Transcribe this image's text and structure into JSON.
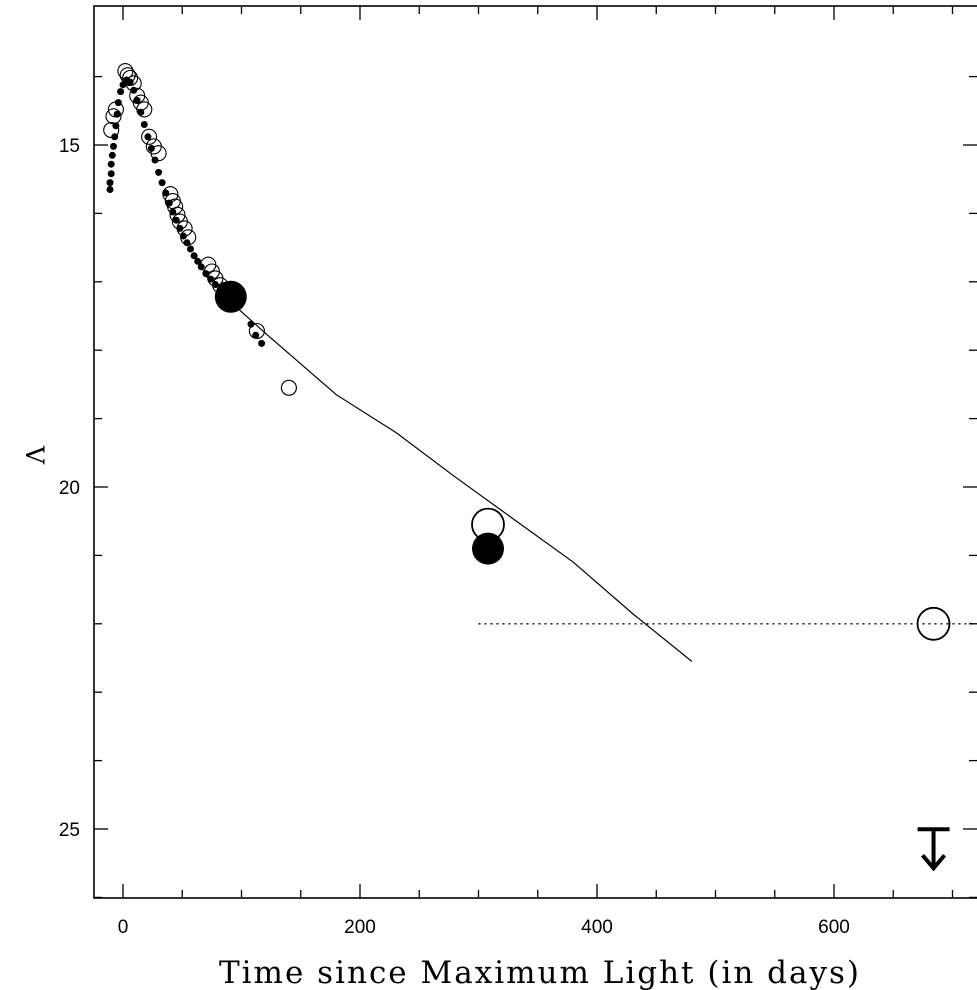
{
  "chart_data": {
    "type": "scatter",
    "title": "",
    "xlabel": "Time since Maximum Light (in days)",
    "ylabel": "V",
    "xlim": [
      -25,
      720
    ],
    "ylim": [
      15.0,
      26.0
    ],
    "y_inverted": true,
    "grid": false,
    "x_ticks": [
      0,
      200,
      400,
      600
    ],
    "y_ticks": [
      15,
      20,
      25
    ],
    "series": [
      {
        "marker": "filled-small",
        "points": [
          [
            -11,
            15.65
          ],
          [
            -11,
            15.55
          ],
          [
            -10,
            15.42
          ],
          [
            -10,
            15.28
          ],
          [
            -9,
            15.15
          ],
          [
            -8,
            15.02
          ],
          [
            -7,
            14.88
          ],
          [
            -6,
            14.72
          ],
          [
            -5,
            14.55
          ],
          [
            -4,
            14.38
          ],
          [
            -2,
            14.22
          ],
          [
            0,
            14.12
          ],
          [
            3,
            14.05
          ],
          [
            6,
            14.08
          ],
          [
            9,
            14.2
          ],
          [
            12,
            14.35
          ],
          [
            15,
            14.52
          ],
          [
            18,
            14.7
          ],
          [
            21,
            14.88
          ],
          [
            24,
            15.05
          ],
          [
            27,
            15.22
          ],
          [
            30,
            15.4
          ],
          [
            33,
            15.55
          ],
          [
            36,
            15.7
          ],
          [
            39,
            15.85
          ],
          [
            42,
            15.98
          ],
          [
            45,
            16.1
          ],
          [
            48,
            16.22
          ],
          [
            51,
            16.33
          ],
          [
            54,
            16.43
          ],
          [
            57,
            16.52
          ],
          [
            60,
            16.62
          ],
          [
            63,
            16.7
          ],
          [
            66,
            16.78
          ],
          [
            70,
            16.88
          ],
          [
            74,
            16.96
          ],
          [
            78,
            17.04
          ],
          [
            82,
            17.12
          ],
          [
            86,
            17.2
          ],
          [
            90,
            17.28
          ],
          [
            95,
            17.38
          ],
          [
            108,
            17.62
          ],
          [
            112,
            17.78
          ],
          [
            117,
            17.9
          ]
        ]
      },
      {
        "marker": "open-small",
        "points": [
          [
            -10,
            14.78
          ],
          [
            -8,
            14.58
          ],
          [
            -6,
            14.48
          ],
          [
            2,
            13.92
          ],
          [
            4,
            13.98
          ],
          [
            6,
            14.02
          ],
          [
            9,
            14.1
          ],
          [
            12,
            14.28
          ],
          [
            15,
            14.38
          ],
          [
            18,
            14.48
          ],
          [
            22,
            14.88
          ],
          [
            26,
            15.02
          ],
          [
            30,
            15.12
          ],
          [
            40,
            15.72
          ],
          [
            42,
            15.82
          ],
          [
            44,
            15.9
          ],
          [
            46,
            16.02
          ],
          [
            48,
            16.12
          ],
          [
            52,
            16.22
          ],
          [
            55,
            16.35
          ],
          [
            72,
            16.75
          ],
          [
            75,
            16.85
          ],
          [
            78,
            16.95
          ],
          [
            82,
            17.05
          ],
          [
            86,
            17.12
          ],
          [
            113,
            17.72
          ]
        ]
      },
      {
        "marker": "open-medium",
        "points": [
          [
            140,
            18.55
          ]
        ]
      },
      {
        "marker": "filled-large",
        "points": [
          [
            91,
            17.22
          ],
          [
            308,
            20.9
          ]
        ]
      },
      {
        "marker": "open-large",
        "points": [
          [
            308,
            20.55
          ],
          [
            684,
            22.0
          ]
        ]
      },
      {
        "type": "line",
        "style": "solid",
        "points": [
          [
            95,
            17.36
          ],
          [
            120,
            17.75
          ],
          [
            150,
            18.2
          ],
          [
            180,
            18.65
          ],
          [
            230,
            19.2
          ],
          [
            280,
            19.85
          ],
          [
            320,
            20.35
          ],
          [
            380,
            21.1
          ],
          [
            430,
            21.85
          ],
          [
            480,
            22.55
          ]
        ]
      },
      {
        "type": "line",
        "style": "dotted",
        "points": [
          [
            300,
            22.0
          ],
          [
            720,
            22.0
          ]
        ]
      }
    ],
    "annotations": [
      {
        "type": "upper-limit-arrow",
        "x": 684,
        "y": 25.15
      }
    ]
  }
}
